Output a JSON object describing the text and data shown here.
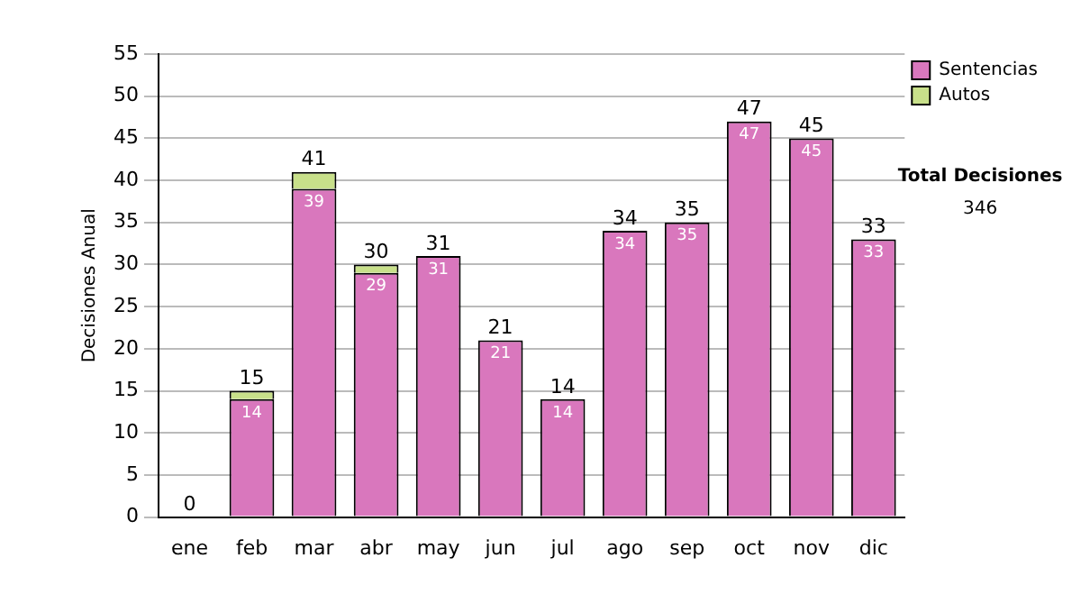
{
  "chart_data": {
    "type": "bar",
    "stacked": true,
    "ylabel": "Decisiones Anual",
    "categories": [
      "ene",
      "feb",
      "mar",
      "abr",
      "may",
      "jun",
      "jul",
      "ago",
      "sep",
      "oct",
      "nov",
      "dic"
    ],
    "series": [
      {
        "name": "Sentencias",
        "color": "#d977bd",
        "values": [
          0,
          14,
          39,
          29,
          31,
          21,
          14,
          34,
          35,
          47,
          45,
          33
        ],
        "value_labels": [
          null,
          "14",
          "39",
          "29",
          "31",
          "21",
          "14",
          "34",
          "35",
          "47",
          "45",
          "33"
        ]
      },
      {
        "name": "Autos",
        "color": "#c8e08a",
        "values": [
          0,
          1,
          2,
          1,
          0,
          0,
          0,
          0,
          0,
          0,
          0,
          0
        ]
      }
    ],
    "totals": [
      "0",
      "15",
      "41",
      "30",
      "31",
      "21",
      "14",
      "34",
      "35",
      "47",
      "45",
      "33"
    ],
    "ylim": [
      0,
      55
    ],
    "yticks": [
      0,
      5,
      10,
      15,
      20,
      25,
      30,
      35,
      40,
      45,
      50,
      55
    ],
    "grid": "y",
    "legend": "right",
    "annotations": [
      "Total Decisiones",
      "346"
    ]
  }
}
